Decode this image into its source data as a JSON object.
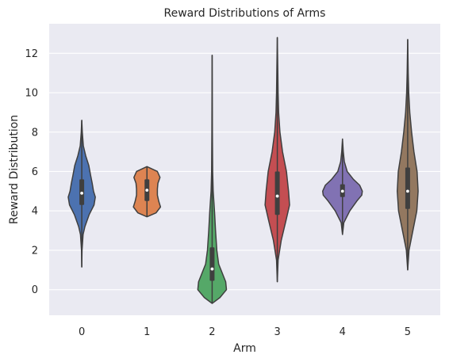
{
  "chart_data": {
    "type": "violin",
    "title": "Reward Distributions of Arms",
    "xlabel": "Arm",
    "ylabel": "Reward Distribution",
    "categories": [
      "0",
      "1",
      "2",
      "3",
      "4",
      "5"
    ],
    "ylim": [
      -1.3,
      13.5
    ],
    "yticks": [
      0,
      2,
      4,
      6,
      8,
      10,
      12
    ],
    "ytick_labels": [
      "0",
      "2",
      "4",
      "6",
      "8",
      "10",
      "12"
    ],
    "grid": true,
    "background_color": "#eaeaf2",
    "series": [
      {
        "category": "0",
        "color": "#4c72b0",
        "min": 1.15,
        "q1": 4.3,
        "median": 4.9,
        "q3": 5.6,
        "max": 8.6,
        "profile": [
          [
            1.15,
            0.0
          ],
          [
            2.0,
            0.01
          ],
          [
            2.8,
            0.05
          ],
          [
            3.2,
            0.12
          ],
          [
            3.8,
            0.28
          ],
          [
            4.3,
            0.47
          ],
          [
            4.7,
            0.52
          ],
          [
            5.0,
            0.45
          ],
          [
            5.4,
            0.4
          ],
          [
            5.8,
            0.34
          ],
          [
            6.3,
            0.27
          ],
          [
            6.8,
            0.15
          ],
          [
            7.3,
            0.06
          ],
          [
            8.0,
            0.02
          ],
          [
            8.6,
            0.0
          ]
        ]
      },
      {
        "category": "1",
        "color": "#dd8452",
        "min": 3.7,
        "q1": 4.5,
        "median": 5.05,
        "q3": 5.6,
        "max": 6.25,
        "profile": [
          [
            3.7,
            0.0
          ],
          [
            3.9,
            0.35
          ],
          [
            4.2,
            0.52
          ],
          [
            4.5,
            0.45
          ],
          [
            4.8,
            0.4
          ],
          [
            5.1,
            0.4
          ],
          [
            5.4,
            0.42
          ],
          [
            5.7,
            0.5
          ],
          [
            6.0,
            0.4
          ],
          [
            6.25,
            0.0
          ]
        ]
      },
      {
        "category": "2",
        "color": "#55a868",
        "min": -0.7,
        "q1": 0.45,
        "median": 1.05,
        "q3": 2.15,
        "max": 11.9,
        "profile": [
          [
            -0.7,
            0.0
          ],
          [
            -0.4,
            0.3
          ],
          [
            0.0,
            0.55
          ],
          [
            0.4,
            0.52
          ],
          [
            0.8,
            0.4
          ],
          [
            1.3,
            0.25
          ],
          [
            2.0,
            0.18
          ],
          [
            3.0,
            0.13
          ],
          [
            4.0,
            0.09
          ],
          [
            5.0,
            0.04
          ],
          [
            6.0,
            0.02
          ],
          [
            8.0,
            0.01
          ],
          [
            10.0,
            0.005
          ],
          [
            11.9,
            0.0
          ]
        ]
      },
      {
        "category": "3",
        "color": "#c44e52",
        "min": 0.4,
        "q1": 3.8,
        "median": 4.75,
        "q3": 6.0,
        "max": 12.8,
        "profile": [
          [
            0.4,
            0.0
          ],
          [
            1.5,
            0.03
          ],
          [
            2.5,
            0.15
          ],
          [
            3.5,
            0.33
          ],
          [
            4.3,
            0.47
          ],
          [
            5.0,
            0.43
          ],
          [
            6.0,
            0.35
          ],
          [
            7.0,
            0.2
          ],
          [
            8.0,
            0.1
          ],
          [
            9.0,
            0.05
          ],
          [
            10.0,
            0.03
          ],
          [
            11.0,
            0.02
          ],
          [
            12.8,
            0.0
          ]
        ]
      },
      {
        "category": "4",
        "color": "#8172b3",
        "min": 2.8,
        "q1": 4.7,
        "median": 5.0,
        "q3": 5.35,
        "max": 7.65,
        "profile": [
          [
            2.8,
            0.0
          ],
          [
            3.4,
            0.05
          ],
          [
            4.0,
            0.28
          ],
          [
            4.5,
            0.55
          ],
          [
            4.8,
            0.74
          ],
          [
            5.0,
            0.76
          ],
          [
            5.3,
            0.66
          ],
          [
            5.6,
            0.42
          ],
          [
            6.0,
            0.18
          ],
          [
            6.5,
            0.07
          ],
          [
            7.0,
            0.03
          ],
          [
            7.65,
            0.0
          ]
        ]
      },
      {
        "category": "5",
        "color": "#937860",
        "min": 1.0,
        "q1": 4.1,
        "median": 5.0,
        "q3": 6.2,
        "max": 12.7,
        "profile": [
          [
            1.0,
            0.0
          ],
          [
            2.0,
            0.05
          ],
          [
            3.0,
            0.2
          ],
          [
            4.0,
            0.35
          ],
          [
            5.0,
            0.4
          ],
          [
            6.0,
            0.36
          ],
          [
            7.0,
            0.24
          ],
          [
            8.0,
            0.15
          ],
          [
            9.0,
            0.08
          ],
          [
            10.0,
            0.04
          ],
          [
            11.0,
            0.02
          ],
          [
            12.7,
            0.0
          ]
        ]
      }
    ]
  }
}
